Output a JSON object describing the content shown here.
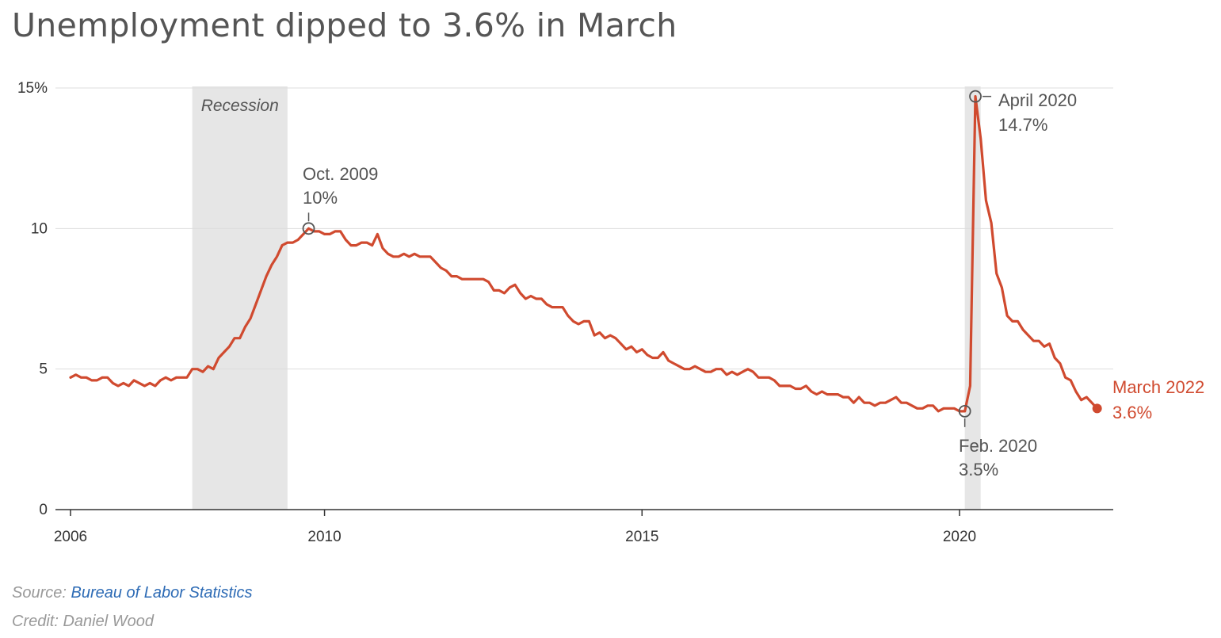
{
  "title": "Unemployment dipped to 3.6% in March",
  "source_label": "Source: ",
  "source_link": "Bureau of Labor Statistics",
  "credit": "Credit: Daniel Wood",
  "colors": {
    "line": "#d04a2f",
    "annotation": "#555555",
    "grid": "#dddddd",
    "recession": "#e6e6e6"
  },
  "chart_data": {
    "type": "line",
    "title": "Unemployment dipped to 3.6% in March",
    "xlabel": "",
    "ylabel": "",
    "ylim": [
      0,
      15
    ],
    "grid": true,
    "y_ticks": [
      {
        "value": 15,
        "label": "15%"
      },
      {
        "value": 10,
        "label": "10"
      },
      {
        "value": 5,
        "label": "5"
      },
      {
        "value": 0,
        "label": "0"
      }
    ],
    "x_ticks": [
      {
        "value": 2006,
        "label": "2006"
      },
      {
        "value": 2010,
        "label": "2010"
      },
      {
        "value": 2015,
        "label": "2015"
      },
      {
        "value": 2020,
        "label": "2020"
      }
    ],
    "x_range": [
      2006,
      2022.25
    ],
    "recessions": [
      {
        "start": 2007.917,
        "end": 2009.417,
        "label": "Recession"
      },
      {
        "start": 2020.083,
        "end": 2020.333,
        "label": ""
      }
    ],
    "series": [
      {
        "start": "2006-01",
        "frequency": "monthly",
        "values": [
          4.7,
          4.8,
          4.7,
          4.7,
          4.6,
          4.6,
          4.7,
          4.7,
          4.5,
          4.4,
          4.5,
          4.4,
          4.6,
          4.5,
          4.4,
          4.5,
          4.4,
          4.6,
          4.7,
          4.6,
          4.7,
          4.7,
          4.7,
          5.0,
          5.0,
          4.9,
          5.1,
          5.0,
          5.4,
          5.6,
          5.8,
          6.1,
          6.1,
          6.5,
          6.8,
          7.3,
          7.8,
          8.3,
          8.7,
          9.0,
          9.4,
          9.5,
          9.5,
          9.6,
          9.8,
          10.0,
          9.9,
          9.9,
          9.8,
          9.8,
          9.9,
          9.9,
          9.6,
          9.4,
          9.4,
          9.5,
          9.5,
          9.4,
          9.8,
          9.3,
          9.1,
          9.0,
          9.0,
          9.1,
          9.0,
          9.1,
          9.0,
          9.0,
          9.0,
          8.8,
          8.6,
          8.5,
          8.3,
          8.3,
          8.2,
          8.2,
          8.2,
          8.2,
          8.2,
          8.1,
          7.8,
          7.8,
          7.7,
          7.9,
          8.0,
          7.7,
          7.5,
          7.6,
          7.5,
          7.5,
          7.3,
          7.2,
          7.2,
          7.2,
          6.9,
          6.7,
          6.6,
          6.7,
          6.7,
          6.2,
          6.3,
          6.1,
          6.2,
          6.1,
          5.9,
          5.7,
          5.8,
          5.6,
          5.7,
          5.5,
          5.4,
          5.4,
          5.6,
          5.3,
          5.2,
          5.1,
          5.0,
          5.0,
          5.1,
          5.0,
          4.9,
          4.9,
          5.0,
          5.0,
          4.8,
          4.9,
          4.8,
          4.9,
          5.0,
          4.9,
          4.7,
          4.7,
          4.7,
          4.6,
          4.4,
          4.4,
          4.4,
          4.3,
          4.3,
          4.4,
          4.2,
          4.1,
          4.2,
          4.1,
          4.1,
          4.1,
          4.0,
          4.0,
          3.8,
          4.0,
          3.8,
          3.8,
          3.7,
          3.8,
          3.8,
          3.9,
          4.0,
          3.8,
          3.8,
          3.7,
          3.6,
          3.6,
          3.7,
          3.7,
          3.5,
          3.6,
          3.6,
          3.6,
          3.5,
          3.5,
          4.4,
          14.7,
          13.2,
          11.0,
          10.2,
          8.4,
          7.9,
          6.9,
          6.7,
          6.7,
          6.4,
          6.2,
          6.0,
          6.0,
          5.8,
          5.9,
          5.4,
          5.2,
          4.7,
          4.6,
          4.2,
          3.9,
          4.0,
          3.8,
          3.6
        ]
      }
    ],
    "annotations": [
      {
        "x": 2009.75,
        "y": 10.0,
        "line1": "Oct. 2009",
        "line2": "10%",
        "color": "gray"
      },
      {
        "x": 2020.083,
        "y": 3.5,
        "line1": "Feb. 2020",
        "line2": "3.5%",
        "color": "gray"
      },
      {
        "x": 2020.25,
        "y": 14.7,
        "line1": "April 2020",
        "line2": "14.7%",
        "color": "gray"
      },
      {
        "x": 2022.167,
        "y": 3.6,
        "line1": "March 2022",
        "line2": "3.6%",
        "color": "red"
      }
    ]
  }
}
